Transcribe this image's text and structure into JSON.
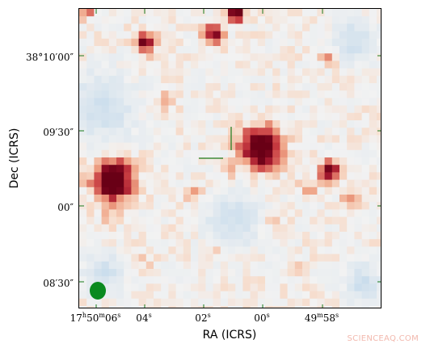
{
  "axes": {
    "xlabel": "RA (ICRS)",
    "ylabel": "Dec (ICRS)",
    "x_tick_labels": [
      "17h50m06s",
      "04s",
      "02s",
      "00s",
      "49m58s"
    ],
    "y_tick_labels": [
      "38°10′00″",
      "09′30″",
      "00″",
      "08′30″"
    ]
  },
  "watermark": "SCIENCEAQ.COM",
  "colors": {
    "strong_source": "#6b0015",
    "medium_source": "#b01f2e",
    "faint_emission": "#f4c0aa",
    "negative_noise": "#c5dcec",
    "background": "#f2f2f2",
    "beam": "#0a8a1f",
    "crosshair": "#1a7a1a"
  },
  "image_content": {
    "type": "radio continuum map",
    "colormap": "diverging red-blue",
    "beam_shape": "green ellipse, lower left",
    "marker": "cross-hair at map centre"
  }
}
